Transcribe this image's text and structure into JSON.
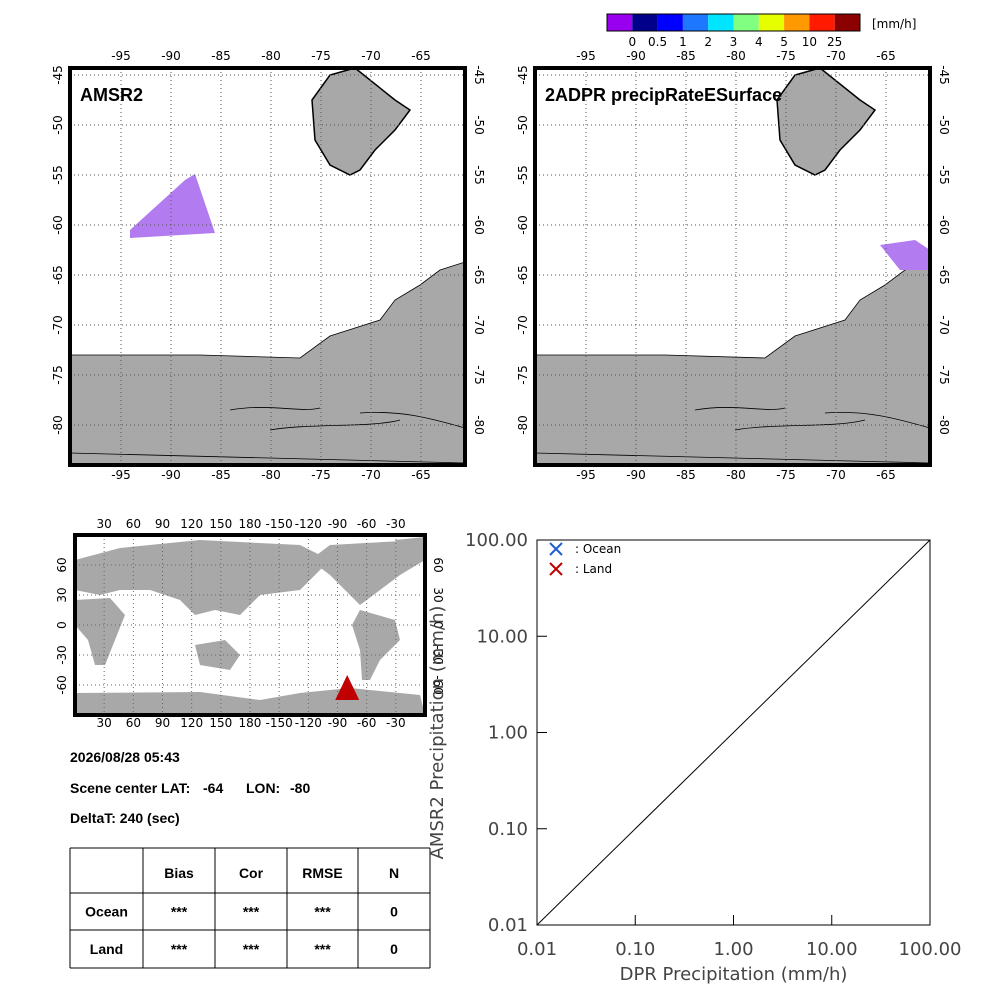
{
  "colorbar": {
    "colors": [
      "#9a00f0",
      "#00008b",
      "#0000ff",
      "#1e78ff",
      "#00e5ff",
      "#80ff80",
      "#e6ff00",
      "#ff9900",
      "#ff1a00",
      "#8b0000"
    ],
    "labels": [
      0,
      0.5,
      1,
      2,
      3,
      4,
      5,
      10,
      25
    ],
    "unit": "[mm/h]"
  },
  "maps": [
    {
      "title": "AMSR2",
      "lon_ticks": [
        -95,
        -90,
        -85,
        -80,
        -75,
        -70,
        -65
      ],
      "lat_ticks": [
        -45,
        -50,
        -55,
        -60,
        -65,
        -70,
        -75,
        -80
      ]
    },
    {
      "title": "2ADPR precipRateESurface",
      "lon_ticks": [
        -95,
        -90,
        -85,
        -80,
        -75,
        -70,
        -65
      ],
      "lat_ticks": [
        -45,
        -50,
        -55,
        -60,
        -65,
        -70,
        -75,
        -80
      ]
    }
  ],
  "world_map": {
    "lon_ticks": [
      30,
      60,
      90,
      120,
      150,
      180,
      -150,
      -120,
      -90,
      -60,
      -30
    ],
    "lat_ticks": [
      60,
      30,
      0,
      -30,
      -60
    ]
  },
  "info": {
    "datetime": "2026/08/28 05:43",
    "lat_label": "Scene center LAT:",
    "lat": -64,
    "lon_label": "LON:",
    "lon": -80,
    "deltat": "DeltaT:  240 (sec)"
  },
  "table": {
    "columns": [
      "Bias",
      "Cor",
      "RMSE",
      "N"
    ],
    "rows": [
      {
        "label": "Ocean",
        "cells": [
          "***",
          "***",
          "***",
          0
        ]
      },
      {
        "label": "Land",
        "cells": [
          "***",
          "***",
          "***",
          0
        ]
      }
    ]
  },
  "chart_data": {
    "type": "scatter",
    "x_label": "DPR Precipitation (mm/h)",
    "y_label": "AMSR2 Precipitation (mm/h)",
    "log_x": true,
    "log_y": true,
    "xlim": [
      0.01,
      100
    ],
    "ylim": [
      0.01,
      100
    ],
    "xticks": [
      0.01,
      {
        "value": 0.1,
        "label": "0.10"
      },
      {
        "value": 1,
        "label": "1.00"
      },
      {
        "value": 10,
        "label": "10.00"
      },
      {
        "value": 100,
        "label": "100.00"
      }
    ],
    "yticks": [
      0.01,
      {
        "value": 0.1,
        "label": "0.10"
      },
      {
        "value": 1,
        "label": "1.00"
      },
      {
        "value": 10,
        "label": "10.00"
      },
      {
        "value": 100,
        "label": "100.00"
      }
    ],
    "series": [
      {
        "name": ": Ocean",
        "color": "#1f5fd6",
        "x": [],
        "values": []
      },
      {
        "name": ": Land",
        "color": "#c00000",
        "x": [],
        "values": []
      }
    ]
  }
}
